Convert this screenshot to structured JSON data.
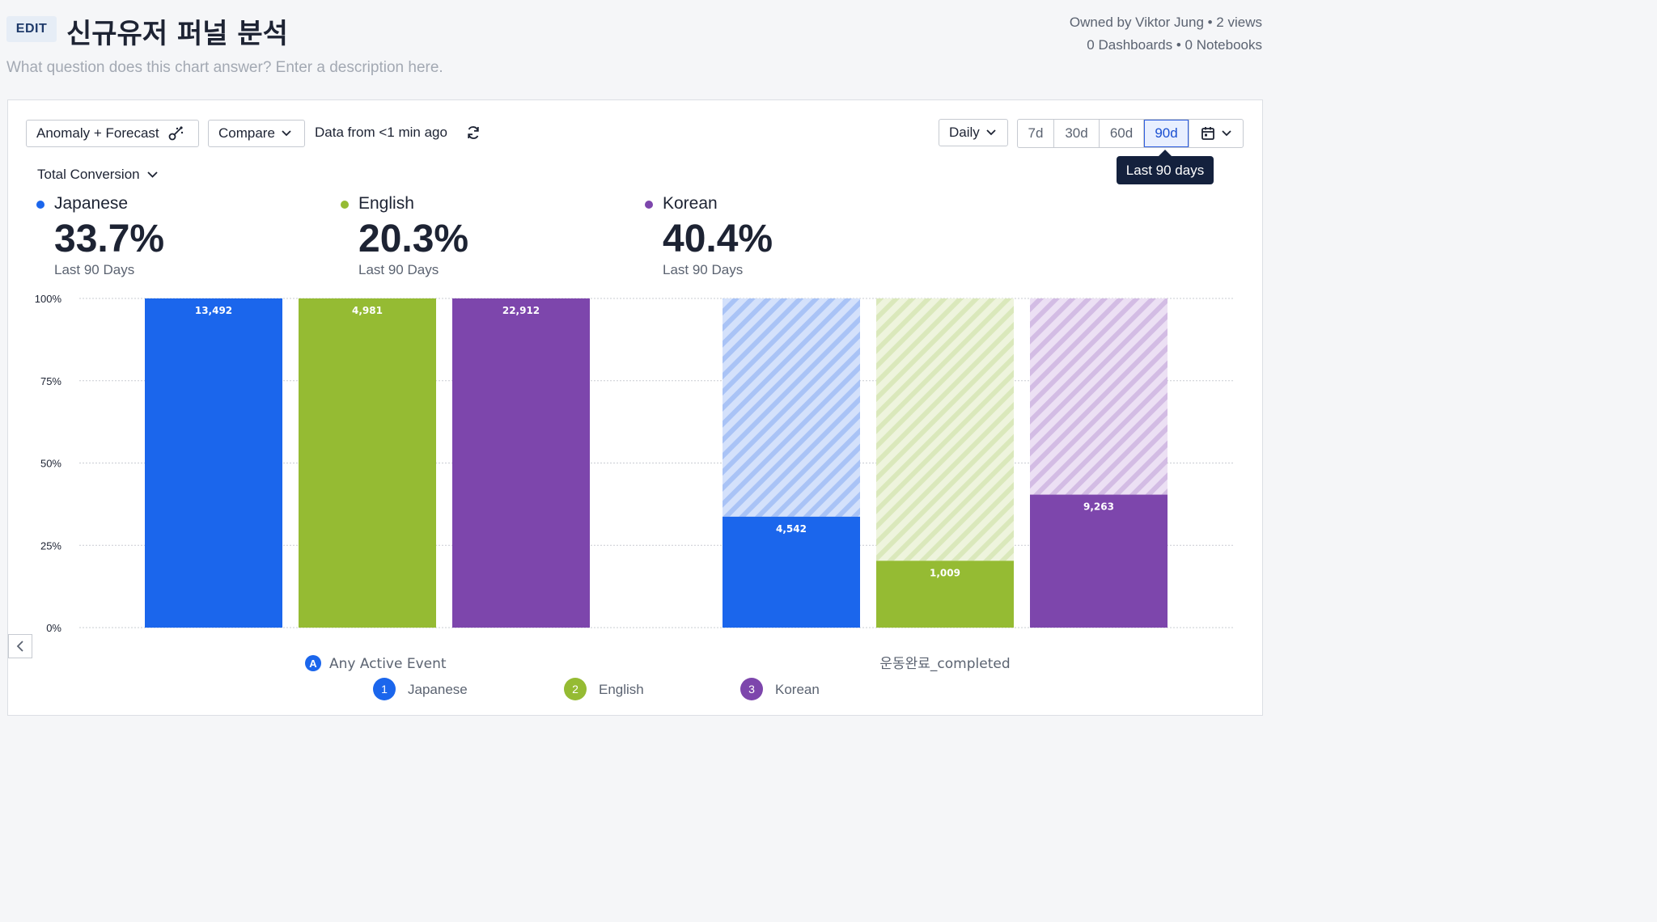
{
  "header": {
    "edit_label": "EDIT",
    "title": "신규유저 퍼널 분석",
    "description_placeholder": "What question does this chart answer? Enter a description here.",
    "owner_line": "Owned by Viktor Jung • 2 views",
    "usage_line": "0 Dashboards • 0 Notebooks"
  },
  "toolbar": {
    "anomaly_label": "Anomaly + Forecast",
    "compare_label": "Compare",
    "data_freshness": "Data from <1 min ago",
    "interval_label": "Daily",
    "ranges": [
      "7d",
      "30d",
      "60d",
      "90d"
    ],
    "active_range": "90d",
    "tooltip": "Last 90 days"
  },
  "metric": {
    "selector_label": "Total Conversion"
  },
  "summary": [
    {
      "name": "Japanese",
      "pct": "33.7%",
      "period": "Last 90 Days",
      "color": "#1b66ec"
    },
    {
      "name": "English",
      "pct": "20.3%",
      "period": "Last 90 Days",
      "color": "#95bb33"
    },
    {
      "name": "Korean",
      "pct": "40.4%",
      "period": "Last 90 Days",
      "color": "#7d46ac"
    }
  ],
  "chart_data": {
    "type": "bar",
    "categories": [
      "Any Active Event",
      "운동완료_completed"
    ],
    "y_ticks": [
      "0%",
      "25%",
      "50%",
      "75%",
      "100%"
    ],
    "ylim": [
      0,
      100
    ],
    "series": [
      {
        "name": "Japanese",
        "color": "#1b66ec",
        "percent": [
          100,
          33.7
        ],
        "counts": [
          "13,492",
          "4,542"
        ]
      },
      {
        "name": "English",
        "color": "#95bb33",
        "percent": [
          100,
          20.3
        ],
        "counts": [
          "4,981",
          "1,009"
        ]
      },
      {
        "name": "Korean",
        "color": "#7d46ac",
        "percent": [
          100,
          40.4
        ],
        "counts": [
          "22,912",
          "9,263"
        ]
      }
    ],
    "legend": [
      {
        "index": "1",
        "name": "Japanese"
      },
      {
        "index": "2",
        "name": "English"
      },
      {
        "index": "3",
        "name": "Korean"
      }
    ]
  }
}
